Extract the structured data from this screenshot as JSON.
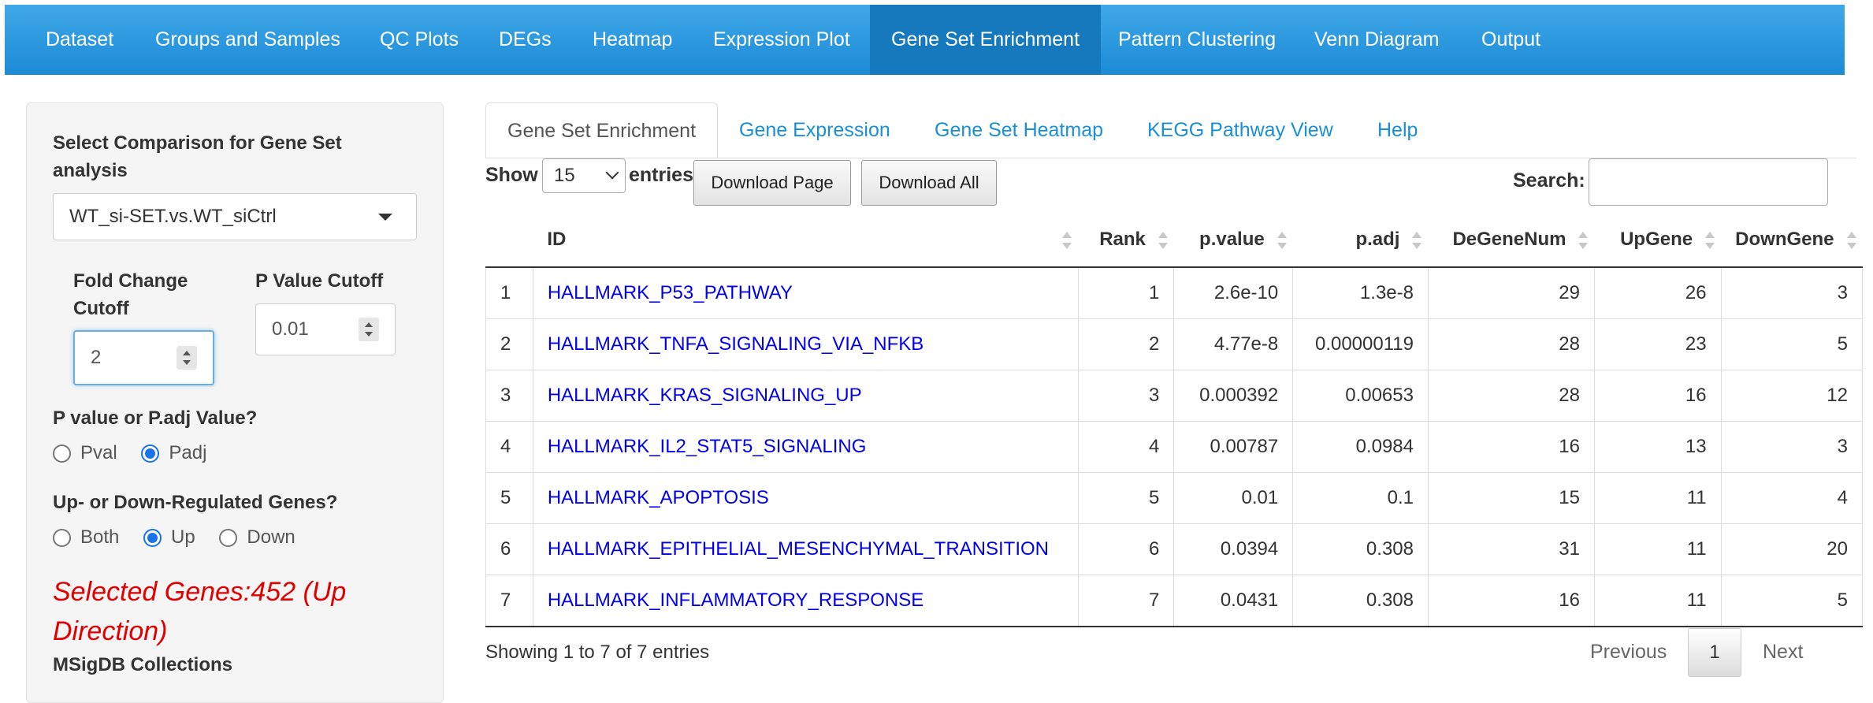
{
  "nav": {
    "items": [
      "Dataset",
      "Groups and Samples",
      "QC Plots",
      "DEGs",
      "Heatmap",
      "Expression Plot",
      "Gene Set Enrichment",
      "Pattern Clustering",
      "Venn Diagram",
      "Output"
    ],
    "active": "Gene Set Enrichment"
  },
  "sidebar": {
    "comparison_label": "Select Comparison for Gene Set analysis",
    "comparison_label_line1": "Select Comparison for Gene Set",
    "comparison_label_line2": "analysis",
    "comparison_value": "WT_si-SET.vs.WT_siCtrl",
    "fc_label_line1": "Fold Change",
    "fc_label_line2": "Cutoff",
    "fc_value": "2",
    "p_label": "P Value Cutoff",
    "p_value": "0.01",
    "pval_type_label": "P value or P.adj Value?",
    "pval_options": [
      "Pval",
      "Padj"
    ],
    "pval_selected": "Padj",
    "direction_label": "Up- or Down-Regulated Genes?",
    "direction_options": [
      "Both",
      "Up",
      "Down"
    ],
    "direction_selected": "Up",
    "selected_genes_line1": "Selected Genes:452 (Up",
    "selected_genes_line2": "Direction)",
    "msigdb_label": "MSigDB Collections"
  },
  "tabs": {
    "items": [
      "Gene Set Enrichment",
      "Gene Expression",
      "Gene Set Heatmap",
      "KEGG Pathway View",
      "Help"
    ],
    "active": "Gene Set Enrichment"
  },
  "controls": {
    "show_label": "Show",
    "entries_value": "15",
    "entries_label": "entries",
    "download_page": "Download Page",
    "download_all": "Download All",
    "search_label": "Search:",
    "search_value": ""
  },
  "table": {
    "columns": [
      "",
      "ID",
      "Rank",
      "p.value",
      "p.adj",
      "DeGeneNum",
      "UpGene",
      "DownGene"
    ],
    "rows": [
      [
        "1",
        "HALLMARK_P53_PATHWAY",
        "1",
        "2.6e-10",
        "1.3e-8",
        "29",
        "26",
        "3"
      ],
      [
        "2",
        "HALLMARK_TNFA_SIGNALING_VIA_NFKB",
        "2",
        "4.77e-8",
        "0.00000119",
        "28",
        "23",
        "5"
      ],
      [
        "3",
        "HALLMARK_KRAS_SIGNALING_UP",
        "3",
        "0.000392",
        "0.00653",
        "28",
        "16",
        "12"
      ],
      [
        "4",
        "HALLMARK_IL2_STAT5_SIGNALING",
        "4",
        "0.00787",
        "0.0984",
        "16",
        "13",
        "3"
      ],
      [
        "5",
        "HALLMARK_APOPTOSIS",
        "5",
        "0.01",
        "0.1",
        "15",
        "11",
        "4"
      ],
      [
        "6",
        "HALLMARK_EPITHELIAL_MESENCHYMAL_TRANSITION",
        "6",
        "0.0394",
        "0.308",
        "31",
        "11",
        "20"
      ],
      [
        "7",
        "HALLMARK_INFLAMMATORY_RESPONSE",
        "7",
        "0.0431",
        "0.308",
        "16",
        "11",
        "5"
      ]
    ]
  },
  "pagination": {
    "info": "Showing 1 to 7 of 7 entries",
    "previous": "Previous",
    "current": "1",
    "next": "Next"
  },
  "colors": {
    "nav_bg": "#2196e0",
    "nav_active": "#1779bd",
    "link": "#0000ee",
    "tab_link": "#1a8fd9",
    "selected_genes_text": "#e00000",
    "radio_checked": "#1a73e8"
  }
}
